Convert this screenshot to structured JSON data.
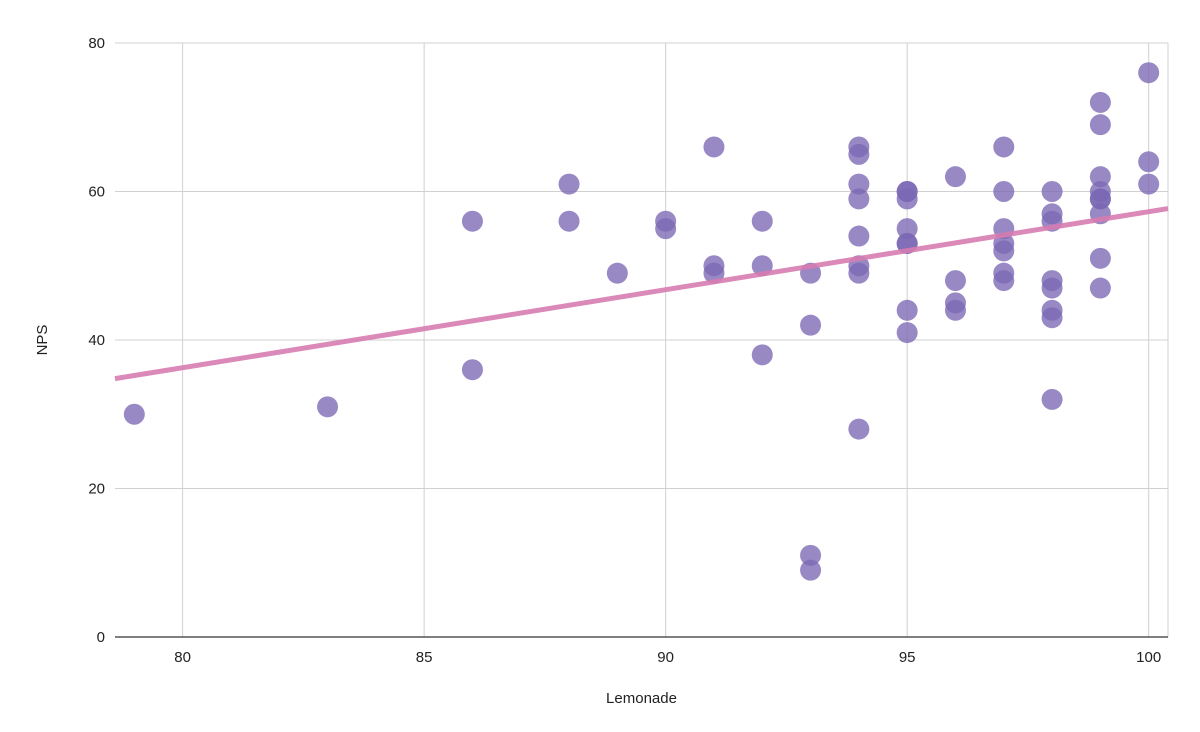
{
  "chart_data": {
    "type": "scatter",
    "xlabel": "Lemonade",
    "ylabel": "NPS",
    "xlim": [
      78.6,
      100.4
    ],
    "ylim": [
      0,
      80
    ],
    "x_ticks": [
      80,
      85,
      90,
      95,
      100
    ],
    "y_ticks": [
      0,
      20,
      40,
      60,
      80
    ],
    "grid": true,
    "legend": "none",
    "point_color": "#7b68b5",
    "trendline_color": "#d67cb0",
    "trendline": {
      "x": [
        78.6,
        100.4
      ],
      "y": [
        34.8,
        57.7
      ]
    },
    "points": [
      {
        "x": 79,
        "y": 30
      },
      {
        "x": 83,
        "y": 31
      },
      {
        "x": 86,
        "y": 56
      },
      {
        "x": 86,
        "y": 36
      },
      {
        "x": 88,
        "y": 61
      },
      {
        "x": 88,
        "y": 56
      },
      {
        "x": 89,
        "y": 49
      },
      {
        "x": 90,
        "y": 56
      },
      {
        "x": 90,
        "y": 55
      },
      {
        "x": 91,
        "y": 66
      },
      {
        "x": 91,
        "y": 50
      },
      {
        "x": 91,
        "y": 49
      },
      {
        "x": 92,
        "y": 56
      },
      {
        "x": 92,
        "y": 50
      },
      {
        "x": 92,
        "y": 38
      },
      {
        "x": 93,
        "y": 49
      },
      {
        "x": 93,
        "y": 42
      },
      {
        "x": 93,
        "y": 11
      },
      {
        "x": 93,
        "y": 9
      },
      {
        "x": 94,
        "y": 66
      },
      {
        "x": 94,
        "y": 65
      },
      {
        "x": 94,
        "y": 61
      },
      {
        "x": 94,
        "y": 59
      },
      {
        "x": 94,
        "y": 54
      },
      {
        "x": 94,
        "y": 50
      },
      {
        "x": 94,
        "y": 49
      },
      {
        "x": 94,
        "y": 28
      },
      {
        "x": 95,
        "y": 60
      },
      {
        "x": 95,
        "y": 60
      },
      {
        "x": 95,
        "y": 59
      },
      {
        "x": 95,
        "y": 55
      },
      {
        "x": 95,
        "y": 53
      },
      {
        "x": 95,
        "y": 53
      },
      {
        "x": 95,
        "y": 44
      },
      {
        "x": 95,
        "y": 41
      },
      {
        "x": 96,
        "y": 62
      },
      {
        "x": 96,
        "y": 48
      },
      {
        "x": 96,
        "y": 45
      },
      {
        "x": 96,
        "y": 44
      },
      {
        "x": 97,
        "y": 66
      },
      {
        "x": 97,
        "y": 60
      },
      {
        "x": 97,
        "y": 55
      },
      {
        "x": 97,
        "y": 53
      },
      {
        "x": 97,
        "y": 52
      },
      {
        "x": 97,
        "y": 49
      },
      {
        "x": 97,
        "y": 48
      },
      {
        "x": 98,
        "y": 60
      },
      {
        "x": 98,
        "y": 57
      },
      {
        "x": 98,
        "y": 56
      },
      {
        "x": 98,
        "y": 48
      },
      {
        "x": 98,
        "y": 47
      },
      {
        "x": 98,
        "y": 44
      },
      {
        "x": 98,
        "y": 43
      },
      {
        "x": 98,
        "y": 32
      },
      {
        "x": 99,
        "y": 72
      },
      {
        "x": 99,
        "y": 69
      },
      {
        "x": 99,
        "y": 62
      },
      {
        "x": 99,
        "y": 60
      },
      {
        "x": 99,
        "y": 59
      },
      {
        "x": 99,
        "y": 59
      },
      {
        "x": 99,
        "y": 57
      },
      {
        "x": 99,
        "y": 51
      },
      {
        "x": 99,
        "y": 47
      },
      {
        "x": 100,
        "y": 76
      },
      {
        "x": 100,
        "y": 64
      },
      {
        "x": 100,
        "y": 61
      }
    ]
  }
}
